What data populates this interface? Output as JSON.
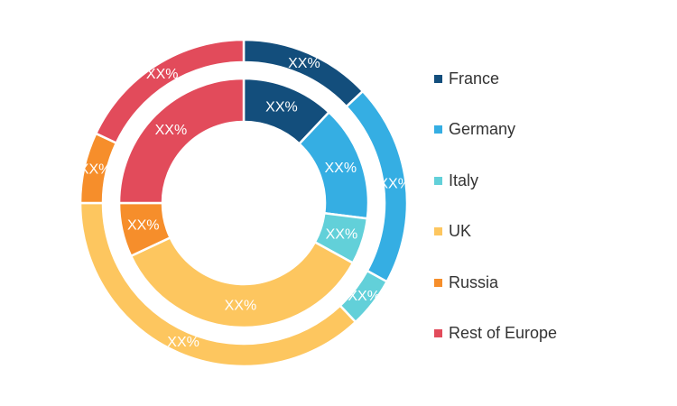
{
  "chart_data": {
    "type": "pie",
    "variant": "nested-donut",
    "categories": [
      "France",
      "Germany",
      "Italy",
      "UK",
      "Russia",
      "Rest of Europe"
    ],
    "colors": [
      "#134e7c",
      "#35aee3",
      "#62d0d9",
      "#fdc65f",
      "#f68e2b",
      "#e24b5b"
    ],
    "series": [
      {
        "ring": "inner",
        "values": [
          12,
          15,
          6,
          35,
          7,
          25
        ],
        "labels": [
          "XX%",
          "XX%",
          "XX%",
          "XX%",
          "XX%",
          "XX%"
        ]
      },
      {
        "ring": "outer",
        "values": [
          13,
          20,
          5,
          37,
          7,
          18
        ],
        "labels": [
          "XX%",
          "XX%",
          "XX%",
          "XX%",
          "XX%",
          "XX%"
        ]
      }
    ],
    "legend_position": "right"
  },
  "legend": {
    "items": [
      {
        "label": "France",
        "color": "#134e7c"
      },
      {
        "label": "Germany",
        "color": "#35aee3"
      },
      {
        "label": "Italy",
        "color": "#62d0d9"
      },
      {
        "label": "UK",
        "color": "#fdc65f"
      },
      {
        "label": "Russia",
        "color": "#f68e2b"
      },
      {
        "label": "Rest of Europe",
        "color": "#e24b5b"
      }
    ]
  }
}
